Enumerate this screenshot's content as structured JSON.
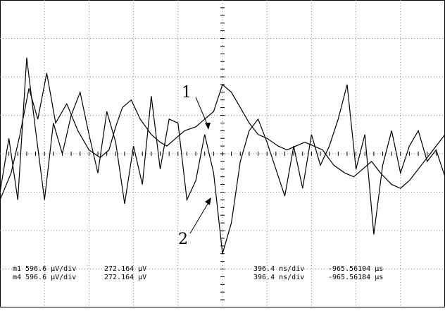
{
  "chart_data": {
    "type": "line",
    "title": "",
    "xlabel": "",
    "ylabel": "",
    "grid": true,
    "x_divisions": 10,
    "y_divisions": 8,
    "xlim": [
      0,
      10
    ],
    "ylim": [
      -4,
      4
    ],
    "series": [
      {
        "name": "1",
        "color": "#000000",
        "x": [
          0,
          0.25,
          0.45,
          0.65,
          0.85,
          1.05,
          1.25,
          1.5,
          1.75,
          2.0,
          2.25,
          2.45,
          2.6,
          2.75,
          2.95,
          3.15,
          3.4,
          3.6,
          3.75,
          3.95,
          4.15,
          4.4,
          4.6,
          4.8,
          5.0,
          5.2,
          5.4,
          5.6,
          5.8,
          6.0,
          6.25,
          6.45,
          6.65,
          6.85,
          7.05,
          7.25,
          7.5,
          7.75,
          7.95,
          8.15,
          8.35,
          8.55,
          8.8,
          9.0,
          9.2,
          9.4,
          9.6,
          9.8,
          10.0
        ],
        "y": [
          -1.2,
          -0.5,
          0.5,
          1.7,
          0.9,
          2.1,
          0.8,
          1.3,
          0.6,
          0.1,
          -0.1,
          0.1,
          0.7,
          1.2,
          1.4,
          0.9,
          0.5,
          0.3,
          0.2,
          0.4,
          0.6,
          0.7,
          0.9,
          1.1,
          1.8,
          1.6,
          1.2,
          0.8,
          0.5,
          0.4,
          0.2,
          0.1,
          0.2,
          0.3,
          0.2,
          0.1,
          -0.3,
          -0.5,
          -0.6,
          -0.4,
          -0.2,
          -0.5,
          -0.8,
          -0.9,
          -0.7,
          -0.4,
          -0.1,
          0.2,
          0.5
        ]
      },
      {
        "name": "2",
        "color": "#000000",
        "x": [
          0,
          0.2,
          0.4,
          0.6,
          0.8,
          1.0,
          1.2,
          1.4,
          1.6,
          1.8,
          2.0,
          2.2,
          2.4,
          2.6,
          2.8,
          3.0,
          3.2,
          3.4,
          3.6,
          3.8,
          4.0,
          4.2,
          4.4,
          4.6,
          4.8,
          5.0,
          5.2,
          5.4,
          5.6,
          5.8,
          6.0,
          6.2,
          6.4,
          6.6,
          6.8,
          7.0,
          7.2,
          7.4,
          7.6,
          7.8,
          8.0,
          8.2,
          8.4,
          8.6,
          8.8,
          9.0,
          9.2,
          9.4,
          9.6,
          9.8,
          10.0
        ],
        "y": [
          -1.0,
          0.4,
          -1.2,
          2.5,
          0.6,
          -1.2,
          0.8,
          0.0,
          1.0,
          1.6,
          0.5,
          -0.5,
          1.1,
          0.3,
          -1.3,
          0.2,
          -0.8,
          1.5,
          -0.4,
          0.9,
          0.8,
          -1.2,
          -0.7,
          0.5,
          -0.5,
          -2.6,
          -1.8,
          -0.2,
          0.6,
          0.9,
          0.3,
          -0.4,
          -1.1,
          0.2,
          -0.9,
          0.5,
          -0.3,
          0.2,
          0.9,
          1.8,
          -0.4,
          0.5,
          -2.1,
          -0.3,
          0.6,
          -0.5,
          0.2,
          0.6,
          -0.2,
          0.1,
          -0.6
        ]
      }
    ],
    "annotations": [
      {
        "text": "1",
        "target": "series 1"
      },
      {
        "text": "2",
        "target": "series 2"
      }
    ],
    "readouts": [
      {
        "channel": "m1",
        "scale": "596.6 µV/div",
        "offset": "272.164 µV",
        "timebase": "396.4 ns/div",
        "position": "-965.56104 µs"
      },
      {
        "channel": "m4",
        "scale": "596.6 µV/div",
        "offset": "272.164 µV",
        "timebase": "396.4 ns/div",
        "position": "-965.56184 µs"
      }
    ]
  }
}
